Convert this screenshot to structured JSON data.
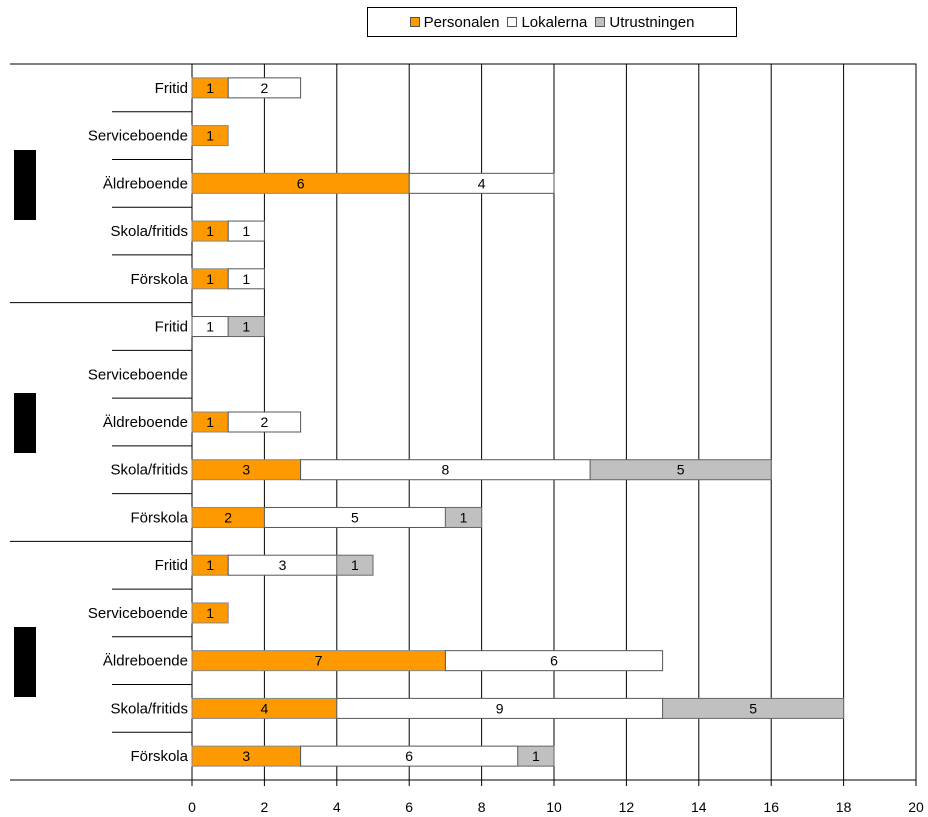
{
  "chart_data": {
    "type": "bar",
    "orientation": "horizontal",
    "stacked": true,
    "colors": {
      "Personalen": "#ff9900",
      "Lokalerna": "#ffffff",
      "Utrustningen": "#c0c0c0"
    },
    "legend": {
      "position": "top",
      "items": [
        "Personalen",
        "Lokalerna",
        "Utrustningen"
      ]
    },
    "xlim": [
      0,
      20
    ],
    "xticks": [
      0,
      2,
      4,
      6,
      8,
      10,
      12,
      14,
      16,
      18,
      20
    ],
    "grid": true,
    "groups": [
      {
        "categories": [
          "Fritid",
          "Serviceboende",
          "Äldreboende",
          "Skola/fritids",
          "Förskola"
        ],
        "series": [
          {
            "name": "Personalen",
            "values": [
              1,
              1,
              6,
              1,
              1
            ]
          },
          {
            "name": "Lokalerna",
            "values": [
              2,
              0,
              4,
              1,
              1
            ]
          },
          {
            "name": "Utrustningen",
            "values": [
              0,
              0,
              0,
              0,
              0
            ]
          }
        ]
      },
      {
        "categories": [
          "Fritid",
          "Serviceboende",
          "Äldreboende",
          "Skola/fritids",
          "Förskola"
        ],
        "series": [
          {
            "name": "Personalen",
            "values": [
              0,
              0,
              1,
              3,
              2
            ]
          },
          {
            "name": "Lokalerna",
            "values": [
              1,
              0,
              2,
              8,
              5
            ]
          },
          {
            "name": "Utrustningen",
            "values": [
              1,
              0,
              0,
              5,
              1
            ]
          }
        ]
      },
      {
        "categories": [
          "Fritid",
          "Serviceboende",
          "Äldreboende",
          "Skola/fritids",
          "Förskola"
        ],
        "series": [
          {
            "name": "Personalen",
            "values": [
              1,
              1,
              7,
              4,
              3
            ]
          },
          {
            "name": "Lokalerna",
            "values": [
              3,
              0,
              6,
              9,
              6
            ]
          },
          {
            "name": "Utrustningen",
            "values": [
              1,
              0,
              0,
              5,
              1
            ]
          }
        ]
      }
    ]
  }
}
